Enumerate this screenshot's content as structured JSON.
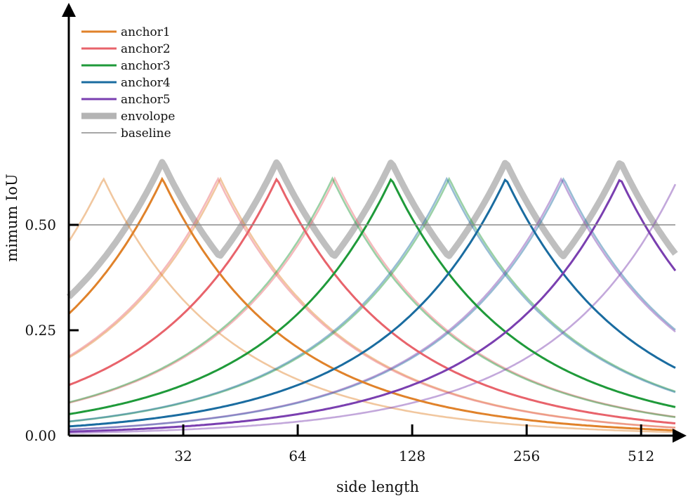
{
  "chart_data": {
    "type": "line",
    "title": "",
    "xlabel": "side length",
    "ylabel": "mimum IoU",
    "x_scale": "log2",
    "x_range": [
      16,
      630
    ],
    "ylim": [
      0,
      1.0
    ],
    "x_ticks": [
      {
        "value": 32,
        "label": "32"
      },
      {
        "value": 64,
        "label": "64"
      },
      {
        "value": 128,
        "label": "128"
      },
      {
        "value": 256,
        "label": "256"
      },
      {
        "value": 512,
        "label": "512"
      }
    ],
    "y_ticks": [
      {
        "value": 0.0,
        "label": "0.00"
      },
      {
        "value": 0.25,
        "label": "0.25"
      },
      {
        "value": 0.5,
        "label": "0.50"
      }
    ],
    "baseline": {
      "name": "baseline",
      "value": 0.5,
      "color": "#8a8a8a"
    },
    "envelope": {
      "name": "envolope",
      "color": "#b4b4b4"
    },
    "series": [
      {
        "name": "anchor1",
        "color": "#e0822a",
        "anchor_size": 28.2,
        "main_range": [
          16,
          39
        ]
      },
      {
        "name": "anchor2",
        "color": "#e8636b",
        "anchor_size": 56.4,
        "main_range": [
          39,
          78
        ]
      },
      {
        "name": "anchor3",
        "color": "#1f9a3a",
        "anchor_size": 112.8,
        "main_range": [
          78,
          156
        ]
      },
      {
        "name": "anchor4",
        "color": "#1a6ca0",
        "anchor_size": 225.6,
        "main_range": [
          156,
          312
        ]
      },
      {
        "name": "anchor5",
        "color": "#7a3fb0",
        "anchor_size": 451.2,
        "main_range": [
          312,
          630
        ]
      }
    ],
    "legend_position": "top-left",
    "grid": false
  }
}
